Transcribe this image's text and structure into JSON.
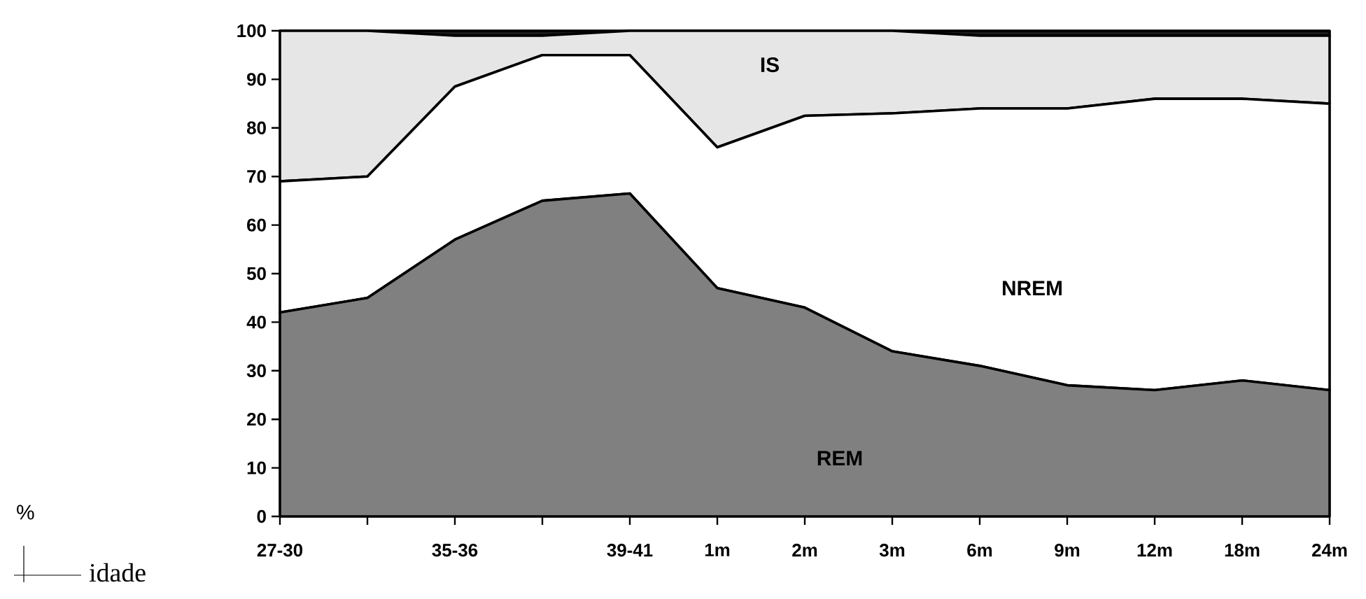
{
  "chart_data": {
    "type": "area",
    "stacked": true,
    "annotations": [
      "%",
      "idade"
    ],
    "categories": [
      "27-30",
      null,
      "35-36",
      null,
      "39-41",
      "1m",
      "2m",
      "3m",
      "6m",
      "9m",
      "12m",
      "18m",
      "24m"
    ],
    "ylim": [
      0,
      100
    ],
    "yticks": [
      0,
      10,
      20,
      30,
      40,
      50,
      60,
      70,
      80,
      90,
      100
    ],
    "series": [
      {
        "name": "REM",
        "color": "#808080",
        "values": [
          42,
          45,
          57,
          65,
          66.5,
          47,
          43,
          34,
          31,
          27,
          26,
          28,
          26
        ]
      },
      {
        "name": "NREM",
        "color": "#ffffff",
        "values": [
          27,
          25,
          31.5,
          30,
          28.5,
          29,
          39.5,
          49,
          53,
          57,
          60,
          58,
          59
        ]
      },
      {
        "name": "IS",
        "color": "#e6e6e6",
        "values": [
          31,
          30,
          10.5,
          4,
          5,
          24,
          17.5,
          17,
          15,
          15,
          13,
          13,
          14
        ]
      },
      {
        "color": "#1a1a1a",
        "values": [
          0,
          0,
          1,
          1,
          0,
          0,
          0,
          0,
          1,
          1,
          1,
          1,
          1
        ]
      }
    ]
  }
}
